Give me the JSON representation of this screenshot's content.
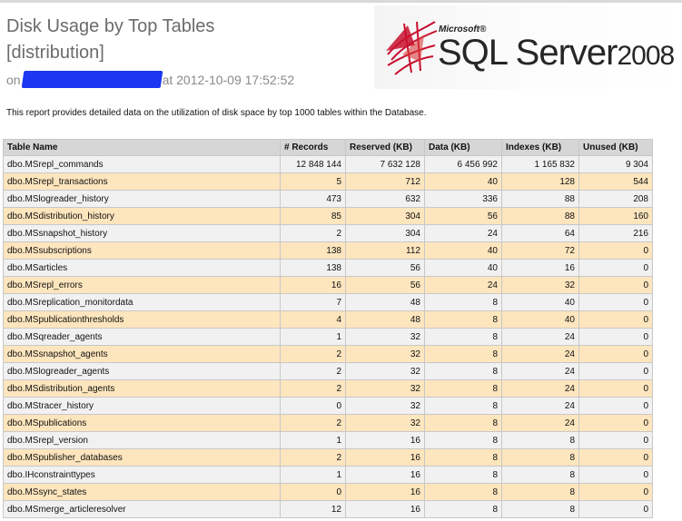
{
  "report": {
    "title_line1": "Disk Usage by Top Tables",
    "title_line2": "[distribution]",
    "on_label": "on",
    "timestamp": "at 2012-10-09 17:52:52",
    "description": "This report provides detailed data on the utilization of disk space by top 1000 tables within the Database."
  },
  "logo": {
    "microsoft": "Microsoft®",
    "product": "SQL Server",
    "year": "2008",
    "accent_color": "#c8102e"
  },
  "colors": {
    "row_even": "#fde5bd",
    "row_odd": "#f1f1f1",
    "header": "#d6d6d6",
    "redaction": "#1d36f0"
  },
  "table": {
    "columns": [
      "Table Name",
      "# Records",
      "Reserved (KB)",
      "Data (KB)",
      "Indexes (KB)",
      "Unused (KB)"
    ],
    "rows": [
      [
        "dbo.MSrepl_commands",
        "12 848 144",
        "7 632 128",
        "6 456 992",
        "1 165 832",
        "9 304"
      ],
      [
        "dbo.MSrepl_transactions",
        "5",
        "712",
        "40",
        "128",
        "544"
      ],
      [
        "dbo.MSlogreader_history",
        "473",
        "632",
        "336",
        "88",
        "208"
      ],
      [
        "dbo.MSdistribution_history",
        "85",
        "304",
        "56",
        "88",
        "160"
      ],
      [
        "dbo.MSsnapshot_history",
        "2",
        "304",
        "24",
        "64",
        "216"
      ],
      [
        "dbo.MSsubscriptions",
        "138",
        "112",
        "40",
        "72",
        "0"
      ],
      [
        "dbo.MSarticles",
        "138",
        "56",
        "40",
        "16",
        "0"
      ],
      [
        "dbo.MSrepl_errors",
        "16",
        "56",
        "24",
        "32",
        "0"
      ],
      [
        "dbo.MSreplication_monitordata",
        "7",
        "48",
        "8",
        "40",
        "0"
      ],
      [
        "dbo.MSpublicationthresholds",
        "4",
        "48",
        "8",
        "40",
        "0"
      ],
      [
        "dbo.MSqreader_agents",
        "1",
        "32",
        "8",
        "24",
        "0"
      ],
      [
        "dbo.MSsnapshot_agents",
        "2",
        "32",
        "8",
        "24",
        "0"
      ],
      [
        "dbo.MSlogreader_agents",
        "2",
        "32",
        "8",
        "24",
        "0"
      ],
      [
        "dbo.MSdistribution_agents",
        "2",
        "32",
        "8",
        "24",
        "0"
      ],
      [
        "dbo.MStracer_history",
        "0",
        "32",
        "8",
        "24",
        "0"
      ],
      [
        "dbo.MSpublications",
        "2",
        "32",
        "8",
        "24",
        "0"
      ],
      [
        "dbo.MSrepl_version",
        "1",
        "16",
        "8",
        "8",
        "0"
      ],
      [
        "dbo.MSpublisher_databases",
        "2",
        "16",
        "8",
        "8",
        "0"
      ],
      [
        "dbo.IHconstrainttypes",
        "1",
        "16",
        "8",
        "8",
        "0"
      ],
      [
        "dbo.MSsync_states",
        "0",
        "16",
        "8",
        "8",
        "0"
      ],
      [
        "dbo.MSmerge_articleresolver",
        "12",
        "16",
        "8",
        "8",
        "0"
      ]
    ]
  }
}
